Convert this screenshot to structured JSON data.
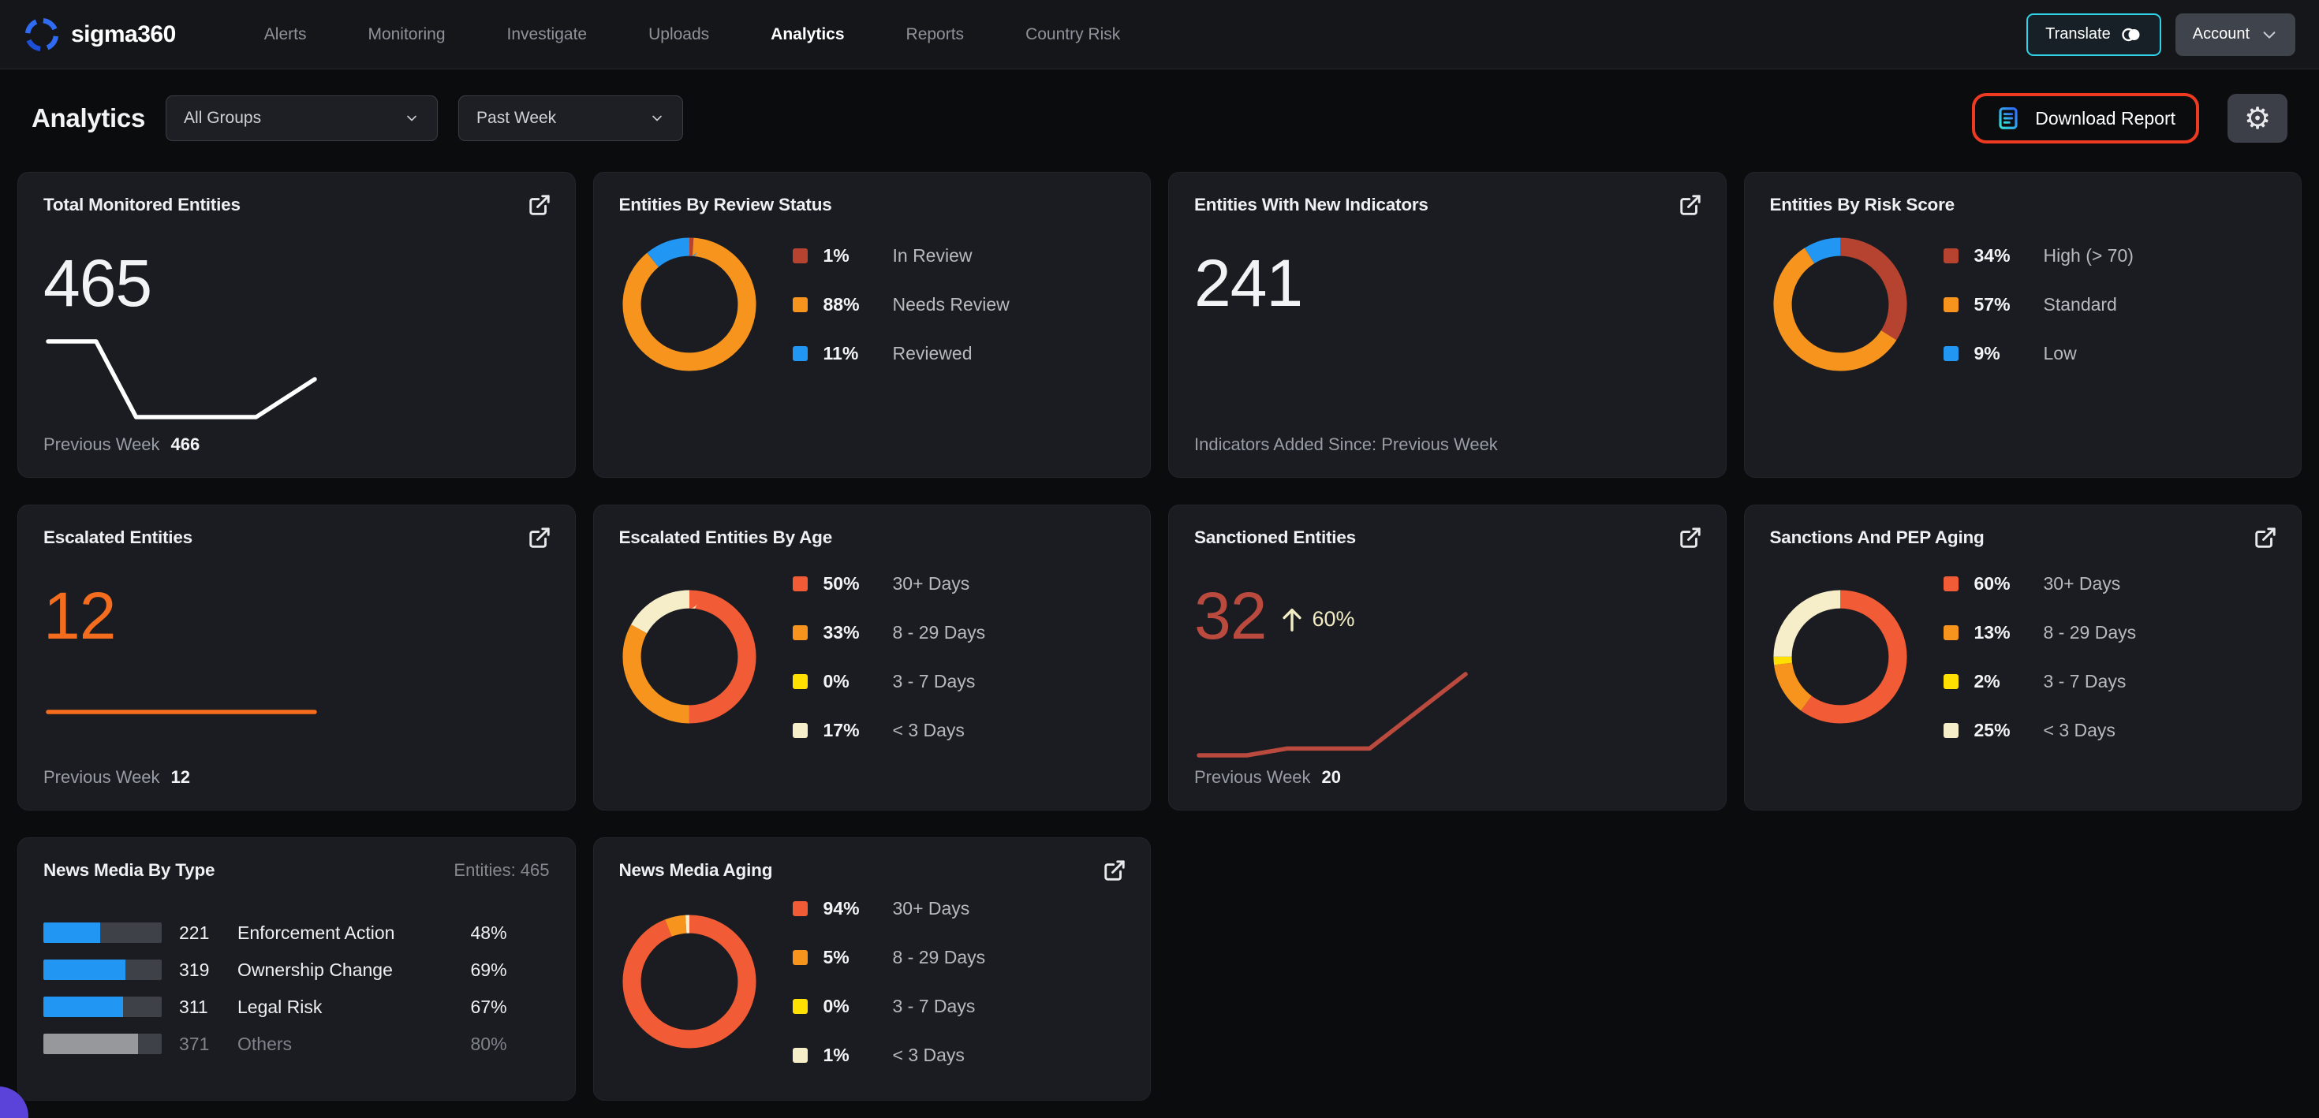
{
  "header": {
    "brand": "sigma360",
    "nav": {
      "items": [
        "Alerts",
        "Monitoring",
        "Investigate",
        "Uploads",
        "Analytics",
        "Reports",
        "Country Risk"
      ],
      "active": "Analytics"
    },
    "translate_label": "Translate",
    "account_label": "Account"
  },
  "toolbar": {
    "title": "Analytics",
    "group_filter": "All Groups",
    "time_filter": "Past Week",
    "download_label": "Download Report",
    "annotation_color": "#ee3a20"
  },
  "palette": {
    "brick_red": "#b5432f",
    "orange": "#f7941d",
    "blue": "#2196f3",
    "vermilion": "#f15b35",
    "yellow": "#ffe000",
    "cream": "#f6eec9",
    "bar_blue": "#2196f3",
    "bar_gray": "#96989c"
  },
  "chart_data": [
    {
      "id": "total-monitored-entities",
      "type": "line",
      "title": "Total Monitored Entities",
      "value": "465",
      "footer_label": "Previous Week",
      "footer_value": "466",
      "color": "#ffffff",
      "x": [
        0,
        0.18,
        0.33,
        0.56,
        0.78,
        1
      ],
      "values": [
        466,
        466,
        464,
        464,
        464,
        465
      ]
    },
    {
      "id": "entities-by-review-status",
      "type": "donut",
      "title": "Entities By Review Status",
      "slices": [
        {
          "pct": 1,
          "label": "In Review",
          "color": "#b5432f"
        },
        {
          "pct": 88,
          "label": "Needs Review",
          "color": "#f7941d"
        },
        {
          "pct": 11,
          "label": "Reviewed",
          "color": "#2196f3"
        }
      ]
    },
    {
      "id": "entities-with-new-indicators",
      "type": "kpi",
      "title": "Entities With New Indicators",
      "value": "241",
      "footer": "Indicators Added Since: Previous Week"
    },
    {
      "id": "entities-by-risk-score",
      "type": "donut",
      "title": "Entities By Risk Score",
      "slices": [
        {
          "pct": 34,
          "label": "High (> 70)",
          "color": "#b5432f"
        },
        {
          "pct": 57,
          "label": "Standard",
          "color": "#f7941d"
        },
        {
          "pct": 9,
          "label": "Low",
          "color": "#2196f3"
        }
      ]
    },
    {
      "id": "escalated-entities",
      "type": "line",
      "title": "Escalated Entities",
      "value": "12",
      "footer_label": "Previous Week",
      "footer_value": "12",
      "color": "#f46d1f",
      "values": [
        12,
        12,
        12,
        12,
        12,
        12
      ]
    },
    {
      "id": "escalated-entities-by-age",
      "type": "donut",
      "title": "Escalated Entities By Age",
      "slices": [
        {
          "pct": 50,
          "label": "30+ Days",
          "color": "#f15b35"
        },
        {
          "pct": 33,
          "label": "8 - 29 Days",
          "color": "#f7941d"
        },
        {
          "pct": 0,
          "label": "3 - 7 Days",
          "color": "#ffe000"
        },
        {
          "pct": 17,
          "label": "< 3 Days",
          "color": "#f6eec9"
        }
      ]
    },
    {
      "id": "sanctioned-entities",
      "type": "line",
      "title": "Sanctioned Entities",
      "value": "32",
      "delta_arrow": "up",
      "delta_pct": "60%",
      "footer_label": "Previous Week",
      "footer_value": "20",
      "color": "#bb4a3e",
      "x": [
        0,
        0.18,
        0.33,
        0.52,
        0.64,
        1
      ],
      "values": [
        20,
        20,
        21,
        21,
        21,
        32
      ]
    },
    {
      "id": "sanctions-and-pep-aging",
      "type": "donut",
      "title": "Sanctions And PEP Aging",
      "slices": [
        {
          "pct": 60,
          "label": "30+ Days",
          "color": "#f15b35"
        },
        {
          "pct": 13,
          "label": "8 - 29 Days",
          "color": "#f7941d"
        },
        {
          "pct": 2,
          "label": "3 - 7 Days",
          "color": "#ffe000"
        },
        {
          "pct": 25,
          "label": "< 3 Days",
          "color": "#f6eec9"
        }
      ]
    },
    {
      "id": "news-media-by-type",
      "type": "bar",
      "title": "News Media By Type",
      "header_right": "Entities: 465",
      "rows": [
        {
          "count": 221,
          "label": "Enforcement Action",
          "pct": 48,
          "muted": false
        },
        {
          "count": 319,
          "label": "Ownership Change",
          "pct": 69,
          "muted": false
        },
        {
          "count": 311,
          "label": "Legal Risk",
          "pct": 67,
          "muted": false
        },
        {
          "count": 371,
          "label": "Others",
          "pct": 80,
          "muted": true
        }
      ]
    },
    {
      "id": "news-media-aging",
      "type": "donut",
      "title": "News Media Aging",
      "slices": [
        {
          "pct": 94,
          "label": "30+ Days",
          "color": "#f15b35"
        },
        {
          "pct": 5,
          "label": "8 - 29 Days",
          "color": "#f7941d"
        },
        {
          "pct": 0,
          "label": "3 - 7 Days",
          "color": "#ffe000"
        },
        {
          "pct": 1,
          "label": "< 3 Days",
          "color": "#f6eec9"
        }
      ]
    }
  ]
}
